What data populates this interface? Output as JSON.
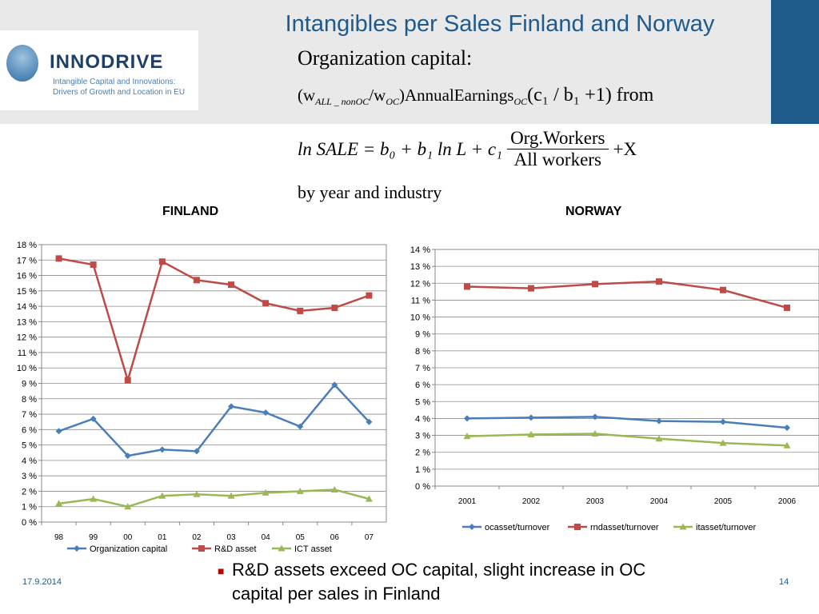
{
  "slide": {
    "title": "Intangibles per Sales Finland and Norway",
    "logo_name": "INNODRIVE",
    "logo_subtitle_1": "Intangible Capital and Innovations:",
    "logo_subtitle_2": "Drivers of Growth and Location in EU",
    "eq_heading": "Organization capital:",
    "eq_line1_a": "(w",
    "eq_line1_sub1": "ALL _ nonOC",
    "eq_line1_b": "/w",
    "eq_line1_sub2": "OC",
    "eq_line1_c": ")AnnualEarnings",
    "eq_line1_sub3": "OC",
    "eq_line1_d": "(c₁ / b₁ +1)  from",
    "eq_line2_left": "ln SALE = b₀ + b₁ ln L + c₁",
    "eq_line2_num": "Org.Workers",
    "eq_line2_den": "All workers",
    "eq_line2_right": "+X",
    "eq_line3": "by year and industry",
    "bullet": "R&D assets exceed OC capital, slight increase in OC capital per sales in Finland",
    "date": "17.9.2014",
    "page": "14"
  },
  "colors": {
    "blue": "#4a7ebb",
    "red": "#be4b48",
    "green": "#98b954",
    "title_blue": "#1f5a8c"
  },
  "chart_data": [
    {
      "type": "line",
      "title": "FINLAND",
      "categories": [
        "98",
        "99",
        "00",
        "01",
        "02",
        "03",
        "04",
        "05",
        "06",
        "07"
      ],
      "ylim": [
        0,
        18
      ],
      "ytick_step": 1,
      "ytick_suffix": " %",
      "grid": true,
      "legend": "bottom",
      "series": [
        {
          "name": "Organization capital",
          "color": "#4a7ebb",
          "marker": "diamond",
          "values": [
            5.9,
            6.7,
            4.3,
            4.7,
            4.6,
            7.5,
            7.1,
            6.2,
            8.9,
            6.5
          ]
        },
        {
          "name": "R&D asset",
          "color": "#be4b48",
          "marker": "square",
          "values": [
            17.1,
            16.7,
            9.2,
            16.9,
            15.7,
            15.4,
            14.2,
            13.7,
            13.9,
            14.7
          ]
        },
        {
          "name": "ICT asset",
          "color": "#98b954",
          "marker": "triangle",
          "values": [
            1.2,
            1.5,
            1.0,
            1.7,
            1.8,
            1.7,
            1.9,
            2.0,
            2.1,
            1.5
          ]
        }
      ]
    },
    {
      "type": "line",
      "title": "NORWAY",
      "categories": [
        "2001",
        "2002",
        "2003",
        "2004",
        "2005",
        "2006"
      ],
      "ylim": [
        0,
        14
      ],
      "ytick_step": 1,
      "ytick_suffix": " %",
      "grid": true,
      "legend": "bottom",
      "series": [
        {
          "name": "ocasset/turnover",
          "color": "#4a7ebb",
          "marker": "diamond",
          "values": [
            4.0,
            4.05,
            4.1,
            3.85,
            3.8,
            3.45
          ]
        },
        {
          "name": "rndasset/turnover",
          "color": "#be4b48",
          "marker": "square",
          "values": [
            11.8,
            11.7,
            11.95,
            12.1,
            11.6,
            10.55
          ]
        },
        {
          "name": "itasset/turnover",
          "color": "#98b954",
          "marker": "triangle",
          "values": [
            2.95,
            3.05,
            3.1,
            2.8,
            2.55,
            2.4
          ]
        }
      ]
    }
  ]
}
